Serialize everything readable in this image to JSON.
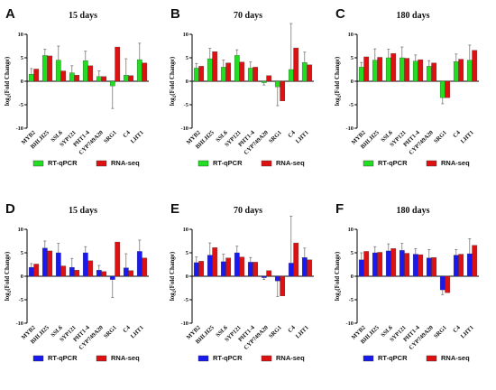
{
  "chart_data": [
    {
      "type": "bar",
      "panel_label": "A",
      "title": "15 days",
      "ylabel_main": "log",
      "ylabel_sub": "2",
      "ylabel_rest": "(Fold Change)",
      "ylim": [
        -10,
        10
      ],
      "yticks": [
        -10,
        -5,
        0,
        5,
        10
      ],
      "categories": [
        "MYB2",
        "BHLH25",
        "SSL6",
        "SYP121",
        "PHT1-4",
        "CYP749A20",
        "SRG1",
        "C4",
        "LHT1"
      ],
      "series": [
        {
          "name": "RT-qPCR",
          "color": "#22dd22",
          "values": [
            1.5,
            5.5,
            4.5,
            1.8,
            4.4,
            1.0,
            -1.0,
            1.3,
            4.6
          ],
          "errors": [
            1.2,
            1.3,
            3.0,
            1.5,
            2.0,
            1.2,
            4.8,
            3.5,
            3.5
          ]
        },
        {
          "name": "RNA-seq",
          "color": "#dd1111",
          "values": [
            2.6,
            5.4,
            2.2,
            1.3,
            3.3,
            1.0,
            7.3,
            1.2,
            3.9
          ],
          "errors": [
            0,
            0,
            0,
            0,
            0,
            0,
            0,
            0,
            0
          ]
        }
      ]
    },
    {
      "type": "bar",
      "panel_label": "B",
      "title": "70 days",
      "ylabel_main": "log",
      "ylabel_sub": "2",
      "ylabel_rest": "(Fold Change)",
      "ylim": [
        -10,
        10
      ],
      "yticks": [
        -10,
        -5,
        0,
        5,
        10
      ],
      "categories": [
        "MYB2",
        "BHLH25",
        "SSL6",
        "SYP121",
        "PHT1-4",
        "CYP749A20",
        "SRG1",
        "C4",
        "LHT1"
      ],
      "series": [
        {
          "name": "RT-qPCR",
          "color": "#22dd22",
          "values": [
            2.8,
            4.8,
            3.0,
            5.5,
            2.8,
            -0.3,
            -1.2,
            2.5,
            4.0
          ],
          "errors": [
            1.0,
            2.2,
            1.5,
            1.2,
            1.3,
            0.5,
            4.0,
            9.8,
            2.2
          ]
        },
        {
          "name": "RNA-seq",
          "color": "#dd1111",
          "values": [
            3.2,
            6.3,
            3.9,
            4.1,
            3.0,
            1.2,
            -4.2,
            7.1,
            3.5
          ],
          "errors": [
            0,
            0,
            0,
            0,
            0,
            0,
            0,
            0,
            0
          ]
        }
      ]
    },
    {
      "type": "bar",
      "panel_label": "C",
      "title": "180 days",
      "ylabel_main": "log",
      "ylabel_sub": "2",
      "ylabel_rest": "(Fold Change)",
      "ylim": [
        -10,
        10
      ],
      "yticks": [
        -10,
        -5,
        0,
        5,
        10
      ],
      "categories": [
        "MYB2",
        "BHLH25",
        "SSL6",
        "SYP121",
        "PHT1-4",
        "CYP749A20",
        "SRG1",
        "C4",
        "LHT1"
      ],
      "series": [
        {
          "name": "RT-qPCR",
          "color": "#22dd22",
          "values": [
            3.0,
            4.5,
            5.0,
            5.0,
            4.3,
            3.2,
            -3.5,
            4.2,
            4.5
          ],
          "errors": [
            1.0,
            2.4,
            1.8,
            2.3,
            1.3,
            1.2,
            1.3,
            1.6,
            3.2
          ]
        },
        {
          "name": "RNA-seq",
          "color": "#dd1111",
          "values": [
            5.2,
            5.1,
            5.9,
            4.9,
            4.6,
            3.9,
            -3.5,
            4.7,
            6.6
          ],
          "errors": [
            0,
            0,
            0,
            0,
            0,
            0,
            0,
            0,
            0
          ]
        }
      ]
    },
    {
      "type": "bar",
      "panel_label": "D",
      "title": "15 days",
      "ylabel_main": "log",
      "ylabel_sub": "2",
      "ylabel_rest": "(Fold Change)",
      "ylim": [
        -10,
        10
      ],
      "yticks": [
        -10,
        -5,
        0,
        5,
        10
      ],
      "categories": [
        "MYB2",
        "BHLH25",
        "SSL6",
        "SYP121",
        "PHT1-4",
        "CYP749A20",
        "SRG1",
        "C4",
        "LHT1"
      ],
      "series": [
        {
          "name": "RT-qPCR",
          "color": "#1a1aee",
          "values": [
            1.9,
            6.0,
            5.0,
            1.9,
            5.0,
            1.3,
            -0.7,
            1.8,
            5.3
          ],
          "errors": [
            0.8,
            1.5,
            2.0,
            1.9,
            1.3,
            1.0,
            3.8,
            3.0,
            2.4
          ]
        },
        {
          "name": "RNA-seq",
          "color": "#dd1111",
          "values": [
            2.6,
            5.4,
            2.2,
            1.3,
            3.3,
            1.0,
            7.3,
            1.2,
            3.9
          ],
          "errors": [
            0,
            0,
            0,
            0,
            0,
            0,
            0,
            0,
            0
          ]
        }
      ]
    },
    {
      "type": "bar",
      "panel_label": "E",
      "title": "70 days",
      "ylabel_main": "log",
      "ylabel_sub": "2",
      "ylabel_rest": "(Fold Change)",
      "ylim": [
        -10,
        10
      ],
      "yticks": [
        -10,
        -5,
        0,
        5,
        10
      ],
      "categories": [
        "MYB2",
        "BHLH25",
        "SSL6",
        "SYP121",
        "PHT1-4",
        "CYP749A20",
        "SRG1",
        "C4",
        "LHT1"
      ],
      "series": [
        {
          "name": "RT-qPCR",
          "color": "#1a1aee",
          "values": [
            2.9,
            4.5,
            3.1,
            5.0,
            3.0,
            -0.3,
            -1.0,
            2.8,
            4.0
          ],
          "errors": [
            1.2,
            2.6,
            1.6,
            1.4,
            1.0,
            0.4,
            3.3,
            10.0,
            2.0
          ]
        },
        {
          "name": "RNA-seq",
          "color": "#dd1111",
          "values": [
            3.2,
            6.1,
            3.9,
            4.1,
            3.0,
            1.2,
            -4.2,
            7.1,
            3.5
          ],
          "errors": [
            0,
            0,
            0,
            0,
            0,
            0,
            0,
            0,
            0
          ]
        }
      ]
    },
    {
      "type": "bar",
      "panel_label": "F",
      "title": "180 days",
      "ylabel_main": "log",
      "ylabel_sub": "2",
      "ylabel_rest": "(Fold Change)",
      "ylim": [
        -10,
        10
      ],
      "yticks": [
        -10,
        -5,
        0,
        5,
        10
      ],
      "categories": [
        "MYB2",
        "BHLH25",
        "SSL6",
        "SYP121",
        "PHT1-4",
        "CYP749A20",
        "SRG1",
        "C4",
        "LHT1"
      ],
      "series": [
        {
          "name": "RT-qPCR",
          "color": "#1a1aee",
          "values": [
            3.5,
            5.0,
            5.4,
            5.5,
            4.7,
            3.9,
            -2.9,
            4.5,
            4.8
          ],
          "errors": [
            1.5,
            1.3,
            1.5,
            1.5,
            1.2,
            1.8,
            1.0,
            1.2,
            3.2
          ]
        },
        {
          "name": "RNA-seq",
          "color": "#dd1111",
          "values": [
            5.3,
            5.1,
            5.9,
            4.9,
            4.6,
            4.0,
            -3.5,
            4.7,
            6.6
          ],
          "errors": [
            0,
            0,
            0,
            0,
            0,
            0,
            0,
            0,
            0
          ]
        }
      ]
    }
  ]
}
